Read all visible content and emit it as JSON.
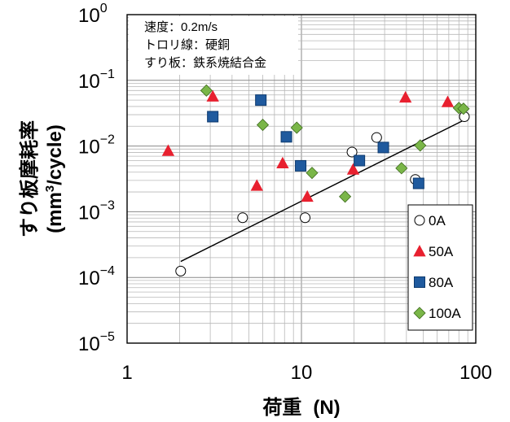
{
  "chart_data": {
    "type": "scatter",
    "x_scale": "log",
    "y_scale": "log",
    "xlim": [
      1,
      100
    ],
    "ylim": [
      1e-05,
      1
    ],
    "grid": true,
    "xlabel": "荷重",
    "xlabel_unit": "(N)",
    "ylabel_line1": "すり板摩耗率",
    "ylabel_line2_pre": "(mm",
    "ylabel_line2_sup": "3",
    "ylabel_line2_post": "/cycle)",
    "x_ticks": [
      {
        "value": 1,
        "label": "1"
      },
      {
        "value": 10,
        "label": "10"
      },
      {
        "value": 100,
        "label": "100"
      }
    ],
    "y_ticks": [
      {
        "value": 1,
        "base": "10",
        "exp": "0"
      },
      {
        "value": 0.1,
        "base": "10",
        "exp": "−1"
      },
      {
        "value": 0.01,
        "base": "10",
        "exp": "−2"
      },
      {
        "value": 0.001,
        "base": "10",
        "exp": "−3"
      },
      {
        "value": 0.0001,
        "base": "10",
        "exp": "−4"
      },
      {
        "value": 1e-05,
        "base": "10",
        "exp": "−5"
      }
    ],
    "conditions": [
      "速度：0.2m/s",
      "トロリ線：硬銅",
      "すり板：鉄系焼結合金"
    ],
    "legend_position": "lower-right",
    "series": [
      {
        "name": "0A",
        "marker": "circle",
        "color": "#ffffff",
        "stroke": "#000000",
        "points": [
          {
            "x": 2.03,
            "y": 0.000125
          },
          {
            "x": 4.6,
            "y": 0.00081
          },
          {
            "x": 10.5,
            "y": 0.00081
          },
          {
            "x": 19.5,
            "y": 0.0081
          },
          {
            "x": 27,
            "y": 0.0135
          },
          {
            "x": 45,
            "y": 0.0031
          },
          {
            "x": 86,
            "y": 0.028
          }
        ]
      },
      {
        "name": "50A",
        "marker": "triangle",
        "color": "#e8202f",
        "stroke": "#e8202f",
        "points": [
          {
            "x": 1.72,
            "y": 0.0085
          },
          {
            "x": 3.1,
            "y": 0.057
          },
          {
            "x": 5.55,
            "y": 0.0025
          },
          {
            "x": 7.8,
            "y": 0.0055
          },
          {
            "x": 10.8,
            "y": 0.0017
          },
          {
            "x": 19.8,
            "y": 0.0044
          },
          {
            "x": 39.5,
            "y": 0.055
          },
          {
            "x": 69,
            "y": 0.047
          }
        ]
      },
      {
        "name": "80A",
        "marker": "square",
        "color": "#1f5a9e",
        "stroke": "#0d3a6e",
        "points": [
          {
            "x": 3.1,
            "y": 0.028
          },
          {
            "x": 5.85,
            "y": 0.05
          },
          {
            "x": 8.2,
            "y": 0.0138
          },
          {
            "x": 9.9,
            "y": 0.005
          },
          {
            "x": 21.5,
            "y": 0.006
          },
          {
            "x": 29.5,
            "y": 0.0095
          },
          {
            "x": 47,
            "y": 0.0027
          }
        ]
      },
      {
        "name": "100A",
        "marker": "diamond",
        "color": "#7ab648",
        "stroke": "#3e6b1e",
        "points": [
          {
            "x": 2.85,
            "y": 0.07
          },
          {
            "x": 6.0,
            "y": 0.021
          },
          {
            "x": 9.4,
            "y": 0.019
          },
          {
            "x": 11.5,
            "y": 0.0039
          },
          {
            "x": 17.8,
            "y": 0.0017
          },
          {
            "x": 37.5,
            "y": 0.0046
          },
          {
            "x": 48,
            "y": 0.0102
          },
          {
            "x": 80,
            "y": 0.038
          },
          {
            "x": 85,
            "y": 0.037
          }
        ]
      }
    ],
    "trend_line": {
      "from": {
        "x": 2.03,
        "y": 0.000175
      },
      "to": {
        "x": 86,
        "y": 0.025
      }
    }
  }
}
